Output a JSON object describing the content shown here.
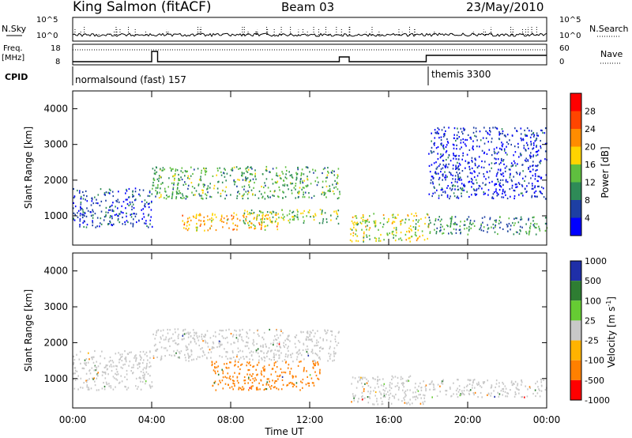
{
  "header": {
    "station": "King Salmon (fitACF)",
    "beam": "Beam 03",
    "date": "23/May/2010"
  },
  "status_panels": {
    "nsky_label": "N.Sky",
    "nsearch_label": "N.Search",
    "freq_label_1": "Freq.",
    "freq_label_2": "[MHz]",
    "nave_label": "Nave",
    "cpid_label": "CPID",
    "noise_ticks": [
      "10^5",
      "10^0"
    ],
    "freq_ticks": [
      "18",
      "8"
    ],
    "nave_ticks": [
      "60",
      "0"
    ],
    "cpid_segments": [
      {
        "name": "normalsound (fast) 157",
        "start_hour": 0,
        "end_hour": 18
      },
      {
        "name": "themis 3300",
        "start_hour": 18,
        "end_hour": 24
      }
    ]
  },
  "colors": {
    "power_scale": [
      "#0000ff",
      "#1d3fa3",
      "#2e8b57",
      "#5fbf3f",
      "#ffd400",
      "#ff8c00",
      "#ff4500",
      "#ff0000"
    ],
    "velocity_scale": [
      "#1f2fa8",
      "#2e7d32",
      "#66cc33",
      "#c8c8c8",
      "#ffb300",
      "#ff8000",
      "#ff0000"
    ]
  },
  "chart_data": [
    {
      "type": "heatmap",
      "panel": "power",
      "ylabel": "Slant Range [km]",
      "xlabel": "Time UT",
      "x_ticks": [
        "00:00",
        "04:00",
        "08:00",
        "12:00",
        "16:00",
        "20:00",
        "00:00"
      ],
      "xlim_hours": [
        0,
        24
      ],
      "y_ticks": [
        1000,
        2000,
        3000,
        4000
      ],
      "ylim": [
        180,
        4500
      ],
      "colorbar_label": "Power [dB]",
      "colorbar_ticks": [
        4,
        8,
        12,
        16,
        20,
        24,
        28
      ],
      "colorbar_range": [
        0,
        32
      ],
      "echo_regions": [
        {
          "t_start": 0.0,
          "t_end": 4.0,
          "r_min": 700,
          "r_max": 1800,
          "level": 6
        },
        {
          "t_start": 4.0,
          "t_end": 13.5,
          "r_min": 1500,
          "r_max": 2400,
          "level": 12
        },
        {
          "t_start": 5.5,
          "t_end": 10.5,
          "r_min": 600,
          "r_max": 1100,
          "level": 20
        },
        {
          "t_start": 8.5,
          "t_end": 13.5,
          "r_min": 800,
          "r_max": 1200,
          "level": 14
        },
        {
          "t_start": 14.0,
          "t_end": 18.0,
          "r_min": 300,
          "r_max": 1100,
          "level": 16
        },
        {
          "t_start": 18.0,
          "t_end": 24.0,
          "r_min": 500,
          "r_max": 1000,
          "level": 10
        },
        {
          "t_start": 18.0,
          "t_end": 24.0,
          "r_min": 1500,
          "r_max": 3500,
          "level": 4
        }
      ]
    },
    {
      "type": "heatmap",
      "panel": "velocity",
      "ylabel": "Slant Range [km]",
      "xlabel": "Time UT",
      "x_ticks": [
        "00:00",
        "04:00",
        "08:00",
        "12:00",
        "16:00",
        "20:00",
        "00:00"
      ],
      "xlim_hours": [
        0,
        24
      ],
      "y_ticks": [
        1000,
        2000,
        3000,
        4000
      ],
      "ylim": [
        180,
        4500
      ],
      "colorbar_label": "Velocity [m s",
      "colorbar_label_sup": "-1",
      "colorbar_label_end": "]",
      "colorbar_ticks": [
        "1000",
        "500",
        "100",
        "25",
        "-25",
        "-100",
        "-500",
        "-1000"
      ],
      "echo_regions": [
        {
          "t_start": 0.0,
          "t_end": 4.0,
          "r_min": 700,
          "r_max": 1800,
          "velocity": 0
        },
        {
          "t_start": 4.0,
          "t_end": 13.5,
          "r_min": 1500,
          "r_max": 2400,
          "velocity": 0
        },
        {
          "t_start": 7.0,
          "t_end": 12.5,
          "r_min": 700,
          "r_max": 1500,
          "velocity": -100
        },
        {
          "t_start": 14.0,
          "t_end": 18.0,
          "r_min": 300,
          "r_max": 1100,
          "velocity": 0
        },
        {
          "t_start": 18.0,
          "t_end": 24.0,
          "r_min": 500,
          "r_max": 1000,
          "velocity": 0
        }
      ]
    }
  ]
}
